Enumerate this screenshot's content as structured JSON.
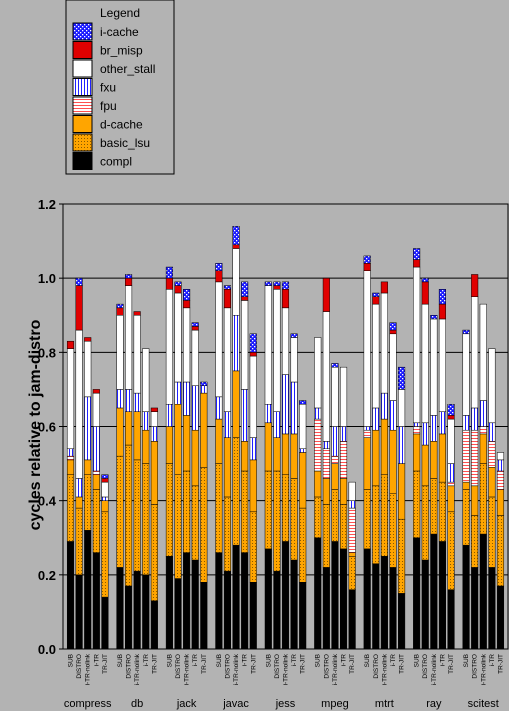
{
  "chart_data": {
    "type": "bar",
    "stacked": true,
    "ylabel": "cycles relative to jam-distro",
    "ylim": [
      0,
      1.2
    ],
    "yticks": [
      "0.0",
      "0.2",
      "0.4",
      "0.6",
      "0.8",
      "1.0",
      "1.2"
    ],
    "grid": true,
    "legend_title": "Legend",
    "legend_position": "top-left",
    "configs": [
      "SUB",
      "DISTRO",
      "i-TR-nolink",
      "i-TR",
      "TR-JIT"
    ],
    "groups": [
      "compress",
      "db",
      "jack",
      "javac",
      "jess",
      "mpeg",
      "mtrt",
      "ray",
      "scitest"
    ],
    "series": [
      {
        "name": "i-cache",
        "color": "#1a1aff",
        "pattern": "dots-white-on-blue"
      },
      {
        "name": "br_misp",
        "color": "#e00000",
        "pattern": "solid"
      },
      {
        "name": "other_stall",
        "color": "#ffffff",
        "pattern": "solid"
      },
      {
        "name": "fxu",
        "color": "#3030ff",
        "pattern": "vertical-lines"
      },
      {
        "name": "fpu",
        "color": "#ff6060",
        "pattern": "horizontal-lines"
      },
      {
        "name": "d-cache",
        "color": "#ffa500",
        "pattern": "solid"
      },
      {
        "name": "basic_lsu",
        "color": "#ffa500",
        "pattern": "dots"
      },
      {
        "name": "compl",
        "color": "#000000",
        "pattern": "solid"
      }
    ],
    "bars": [
      {
        "group": "compress",
        "config": "SUB",
        "values": {
          "compl": 0.29,
          "basic_lsu": 0.18,
          "d-cache": 0.04,
          "fpu": 0.01,
          "fxu": 0.02,
          "other_stall": 0.27,
          "br_misp": 0.02,
          "i-cache": 0.0
        }
      },
      {
        "group": "compress",
        "config": "DISTRO",
        "values": {
          "compl": 0.2,
          "basic_lsu": 0.18,
          "d-cache": 0.03,
          "fpu": 0.0,
          "fxu": 0.05,
          "other_stall": 0.4,
          "br_misp": 0.12,
          "i-cache": 0.02
        }
      },
      {
        "group": "compress",
        "config": "i-TR-nolink",
        "values": {
          "compl": 0.32,
          "basic_lsu": 0.15,
          "d-cache": 0.04,
          "fpu": 0.0,
          "fxu": 0.17,
          "other_stall": 0.15,
          "br_misp": 0.01,
          "i-cache": 0.0
        }
      },
      {
        "group": "compress",
        "config": "i-TR",
        "values": {
          "compl": 0.26,
          "basic_lsu": 0.17,
          "d-cache": 0.04,
          "fpu": 0.01,
          "fxu": 0.12,
          "other_stall": 0.09,
          "br_misp": 0.01,
          "i-cache": 0.0
        }
      },
      {
        "group": "compress",
        "config": "TR-JIT",
        "values": {
          "compl": 0.14,
          "basic_lsu": 0.23,
          "d-cache": 0.03,
          "fpu": 0.0,
          "fxu": 0.01,
          "other_stall": 0.04,
          "br_misp": 0.01,
          "i-cache": 0.01
        }
      },
      {
        "group": "db",
        "config": "SUB",
        "values": {
          "compl": 0.22,
          "basic_lsu": 0.3,
          "d-cache": 0.13,
          "fpu": 0.0,
          "fxu": 0.05,
          "other_stall": 0.2,
          "br_misp": 0.02,
          "i-cache": 0.01
        }
      },
      {
        "group": "db",
        "config": "DISTRO",
        "values": {
          "compl": 0.17,
          "basic_lsu": 0.38,
          "d-cache": 0.09,
          "fpu": 0.0,
          "fxu": 0.06,
          "other_stall": 0.28,
          "br_misp": 0.02,
          "i-cache": 0.01
        }
      },
      {
        "group": "db",
        "config": "i-TR-nolink",
        "values": {
          "compl": 0.21,
          "basic_lsu": 0.3,
          "d-cache": 0.13,
          "fpu": 0.0,
          "fxu": 0.05,
          "other_stall": 0.21,
          "br_misp": 0.01,
          "i-cache": 0.0
        }
      },
      {
        "group": "db",
        "config": "i-TR",
        "values": {
          "compl": 0.2,
          "basic_lsu": 0.3,
          "d-cache": 0.09,
          "fpu": 0.0,
          "fxu": 0.05,
          "other_stall": 0.17,
          "br_misp": 0.0,
          "i-cache": 0.0
        }
      },
      {
        "group": "db",
        "config": "TR-JIT",
        "values": {
          "compl": 0.13,
          "basic_lsu": 0.26,
          "d-cache": 0.17,
          "fpu": 0.0,
          "fxu": 0.04,
          "other_stall": 0.04,
          "br_misp": 0.01,
          "i-cache": 0.0
        }
      },
      {
        "group": "jack",
        "config": "SUB",
        "values": {
          "compl": 0.25,
          "basic_lsu": 0.25,
          "d-cache": 0.1,
          "fpu": 0.0,
          "fxu": 0.06,
          "other_stall": 0.31,
          "br_misp": 0.03,
          "i-cache": 0.03
        }
      },
      {
        "group": "jack",
        "config": "DISTRO",
        "values": {
          "compl": 0.19,
          "basic_lsu": 0.28,
          "d-cache": 0.19,
          "fpu": 0.0,
          "fxu": 0.06,
          "other_stall": 0.24,
          "br_misp": 0.02,
          "i-cache": 0.01
        }
      },
      {
        "group": "jack",
        "config": "i-TR-nolink",
        "values": {
          "compl": 0.26,
          "basic_lsu": 0.22,
          "d-cache": 0.15,
          "fpu": 0.0,
          "fxu": 0.09,
          "other_stall": 0.2,
          "br_misp": 0.02,
          "i-cache": 0.03
        }
      },
      {
        "group": "jack",
        "config": "i-TR",
        "values": {
          "compl": 0.24,
          "basic_lsu": 0.2,
          "d-cache": 0.15,
          "fpu": 0.0,
          "fxu": 0.12,
          "other_stall": 0.15,
          "br_misp": 0.01,
          "i-cache": 0.01
        }
      },
      {
        "group": "jack",
        "config": "TR-JIT",
        "values": {
          "compl": 0.18,
          "basic_lsu": 0.31,
          "d-cache": 0.2,
          "fpu": 0.0,
          "fxu": 0.02,
          "other_stall": 0.0,
          "br_misp": 0.0,
          "i-cache": 0.01
        }
      },
      {
        "group": "javac",
        "config": "SUB",
        "values": {
          "compl": 0.26,
          "basic_lsu": 0.24,
          "d-cache": 0.12,
          "fpu": 0.0,
          "fxu": 0.06,
          "other_stall": 0.31,
          "br_misp": 0.03,
          "i-cache": 0.02
        }
      },
      {
        "group": "javac",
        "config": "DISTRO",
        "values": {
          "compl": 0.21,
          "basic_lsu": 0.2,
          "d-cache": 0.16,
          "fpu": 0.0,
          "fxu": 0.07,
          "other_stall": 0.28,
          "br_misp": 0.05,
          "i-cache": 0.01
        }
      },
      {
        "group": "javac",
        "config": "i-TR-nolink",
        "values": {
          "compl": 0.28,
          "basic_lsu": 0.29,
          "d-cache": 0.18,
          "fpu": 0.0,
          "fxu": 0.15,
          "other_stall": 0.18,
          "br_misp": 0.01,
          "i-cache": 0.05
        }
      },
      {
        "group": "javac",
        "config": "i-TR",
        "values": {
          "compl": 0.26,
          "basic_lsu": 0.22,
          "d-cache": 0.08,
          "fpu": 0.0,
          "fxu": 0.14,
          "other_stall": 0.24,
          "br_misp": 0.01,
          "i-cache": 0.04
        }
      },
      {
        "group": "javac",
        "config": "TR-JIT",
        "values": {
          "compl": 0.18,
          "basic_lsu": 0.19,
          "d-cache": 0.14,
          "fpu": 0.0,
          "fxu": 0.06,
          "other_stall": 0.22,
          "br_misp": 0.01,
          "i-cache": 0.05
        }
      },
      {
        "group": "jess",
        "config": "SUB",
        "values": {
          "compl": 0.27,
          "basic_lsu": 0.21,
          "d-cache": 0.13,
          "fpu": 0.0,
          "fxu": 0.05,
          "other_stall": 0.32,
          "br_misp": 0.0,
          "i-cache": 0.01
        }
      },
      {
        "group": "jess",
        "config": "DISTRO",
        "values": {
          "compl": 0.21,
          "basic_lsu": 0.27,
          "d-cache": 0.09,
          "fpu": 0.0,
          "fxu": 0.07,
          "other_stall": 0.33,
          "br_misp": 0.01,
          "i-cache": 0.01
        }
      },
      {
        "group": "jess",
        "config": "i-TR-nolink",
        "values": {
          "compl": 0.29,
          "basic_lsu": 0.18,
          "d-cache": 0.11,
          "fpu": 0.0,
          "fxu": 0.16,
          "other_stall": 0.18,
          "br_misp": 0.05,
          "i-cache": 0.02
        }
      },
      {
        "group": "jess",
        "config": "i-TR",
        "values": {
          "compl": 0.24,
          "basic_lsu": 0.22,
          "d-cache": 0.12,
          "fpu": 0.0,
          "fxu": 0.14,
          "other_stall": 0.12,
          "br_misp": 0.0,
          "i-cache": 0.01
        }
      },
      {
        "group": "jess",
        "config": "TR-JIT",
        "values": {
          "compl": 0.18,
          "basic_lsu": 0.2,
          "d-cache": 0.15,
          "fpu": 0.0,
          "fxu": 0.01,
          "other_stall": 0.12,
          "br_misp": 0.0,
          "i-cache": 0.01
        }
      },
      {
        "group": "mpeg",
        "config": "SUB",
        "values": {
          "compl": 0.3,
          "basic_lsu": 0.11,
          "d-cache": 0.07,
          "fpu": 0.14,
          "fxu": 0.03,
          "other_stall": 0.19,
          "br_misp": 0.0,
          "i-cache": 0.0
        }
      },
      {
        "group": "mpeg",
        "config": "DISTRO",
        "values": {
          "compl": 0.22,
          "basic_lsu": 0.17,
          "d-cache": 0.07,
          "fpu": 0.08,
          "fxu": 0.02,
          "other_stall": 0.35,
          "br_misp": 0.09,
          "i-cache": 0.0
        }
      },
      {
        "group": "mpeg",
        "config": "i-TR-nolink",
        "values": {
          "compl": 0.29,
          "basic_lsu": 0.14,
          "d-cache": 0.07,
          "fpu": 0.02,
          "fxu": 0.08,
          "other_stall": 0.16,
          "br_misp": 0.0,
          "i-cache": 0.01
        }
      },
      {
        "group": "mpeg",
        "config": "i-TR",
        "values": {
          "compl": 0.27,
          "basic_lsu": 0.12,
          "d-cache": 0.07,
          "fpu": 0.1,
          "fxu": 0.04,
          "other_stall": 0.16,
          "br_misp": 0.0,
          "i-cache": 0.0
        }
      },
      {
        "group": "mpeg",
        "config": "TR-JIT",
        "values": {
          "compl": 0.16,
          "basic_lsu": 0.09,
          "d-cache": 0.01,
          "fpu": 0.12,
          "fxu": 0.02,
          "other_stall": 0.05,
          "br_misp": 0.0,
          "i-cache": 0.0
        }
      },
      {
        "group": "mtrt",
        "config": "SUB",
        "values": {
          "compl": 0.27,
          "basic_lsu": 0.16,
          "d-cache": 0.14,
          "fpu": 0.02,
          "fxu": 0.01,
          "other_stall": 0.42,
          "br_misp": 0.02,
          "i-cache": 0.02
        }
      },
      {
        "group": "mtrt",
        "config": "DISTRO",
        "values": {
          "compl": 0.23,
          "basic_lsu": 0.21,
          "d-cache": 0.15,
          "fpu": 0.0,
          "fxu": 0.06,
          "other_stall": 0.28,
          "br_misp": 0.02,
          "i-cache": 0.01
        }
      },
      {
        "group": "mtrt",
        "config": "i-TR-nolink",
        "values": {
          "compl": 0.25,
          "basic_lsu": 0.22,
          "d-cache": 0.15,
          "fpu": 0.0,
          "fxu": 0.07,
          "other_stall": 0.27,
          "br_misp": 0.03,
          "i-cache": 0.0
        }
      },
      {
        "group": "mtrt",
        "config": "i-TR",
        "values": {
          "compl": 0.22,
          "basic_lsu": 0.2,
          "d-cache": 0.17,
          "fpu": 0.0,
          "fxu": 0.08,
          "other_stall": 0.18,
          "br_misp": 0.01,
          "i-cache": 0.02
        }
      },
      {
        "group": "mtrt",
        "config": "TR-JIT",
        "values": {
          "compl": 0.15,
          "basic_lsu": 0.2,
          "d-cache": 0.15,
          "fpu": 0.0,
          "fxu": 0.1,
          "other_stall": 0.1,
          "br_misp": 0.0,
          "i-cache": 0.06
        }
      },
      {
        "group": "ray",
        "config": "SUB",
        "values": {
          "compl": 0.3,
          "basic_lsu": 0.18,
          "d-cache": 0.1,
          "fpu": 0.02,
          "fxu": 0.01,
          "other_stall": 0.42,
          "br_misp": 0.02,
          "i-cache": 0.03
        }
      },
      {
        "group": "ray",
        "config": "DISTRO",
        "values": {
          "compl": 0.24,
          "basic_lsu": 0.2,
          "d-cache": 0.11,
          "fpu": 0.0,
          "fxu": 0.06,
          "other_stall": 0.32,
          "br_misp": 0.06,
          "i-cache": 0.01
        }
      },
      {
        "group": "ray",
        "config": "i-TR-nolink",
        "values": {
          "compl": 0.31,
          "basic_lsu": 0.15,
          "d-cache": 0.1,
          "fpu": 0.0,
          "fxu": 0.07,
          "other_stall": 0.26,
          "br_misp": 0.0,
          "i-cache": 0.01
        }
      },
      {
        "group": "ray",
        "config": "i-TR",
        "values": {
          "compl": 0.29,
          "basic_lsu": 0.16,
          "d-cache": 0.13,
          "fpu": 0.0,
          "fxu": 0.06,
          "other_stall": 0.25,
          "br_misp": 0.04,
          "i-cache": 0.04
        }
      },
      {
        "group": "ray",
        "config": "TR-JIT",
        "values": {
          "compl": 0.16,
          "basic_lsu": 0.21,
          "d-cache": 0.07,
          "fpu": 0.01,
          "fxu": 0.05,
          "other_stall": 0.12,
          "br_misp": 0.01,
          "i-cache": 0.03
        }
      },
      {
        "group": "scitest",
        "config": "SUB",
        "values": {
          "compl": 0.28,
          "basic_lsu": 0.15,
          "d-cache": 0.02,
          "fpu": 0.14,
          "fxu": 0.04,
          "other_stall": 0.22,
          "br_misp": 0.0,
          "i-cache": 0.01
        }
      },
      {
        "group": "scitest",
        "config": "DISTRO",
        "values": {
          "compl": 0.22,
          "basic_lsu": 0.14,
          "d-cache": 0.08,
          "fpu": 0.15,
          "fxu": 0.06,
          "other_stall": 0.3,
          "br_misp": 0.06,
          "i-cache": 0.0
        }
      },
      {
        "group": "scitest",
        "config": "i-TR-nolink",
        "values": {
          "compl": 0.31,
          "basic_lsu": 0.19,
          "d-cache": 0.08,
          "fpu": 0.02,
          "fxu": 0.07,
          "other_stall": 0.26,
          "br_misp": 0.0,
          "i-cache": 0.0
        }
      },
      {
        "group": "scitest",
        "config": "i-TR",
        "values": {
          "compl": 0.22,
          "basic_lsu": 0.19,
          "d-cache": 0.08,
          "fpu": 0.07,
          "fxu": 0.05,
          "other_stall": 0.2,
          "br_misp": 0.0,
          "i-cache": 0.0
        }
      },
      {
        "group": "scitest",
        "config": "TR-JIT",
        "values": {
          "compl": 0.17,
          "basic_lsu": 0.19,
          "d-cache": 0.07,
          "fpu": 0.05,
          "fxu": 0.03,
          "other_stall": 0.02,
          "br_misp": 0.0,
          "i-cache": 0.0
        }
      }
    ]
  }
}
